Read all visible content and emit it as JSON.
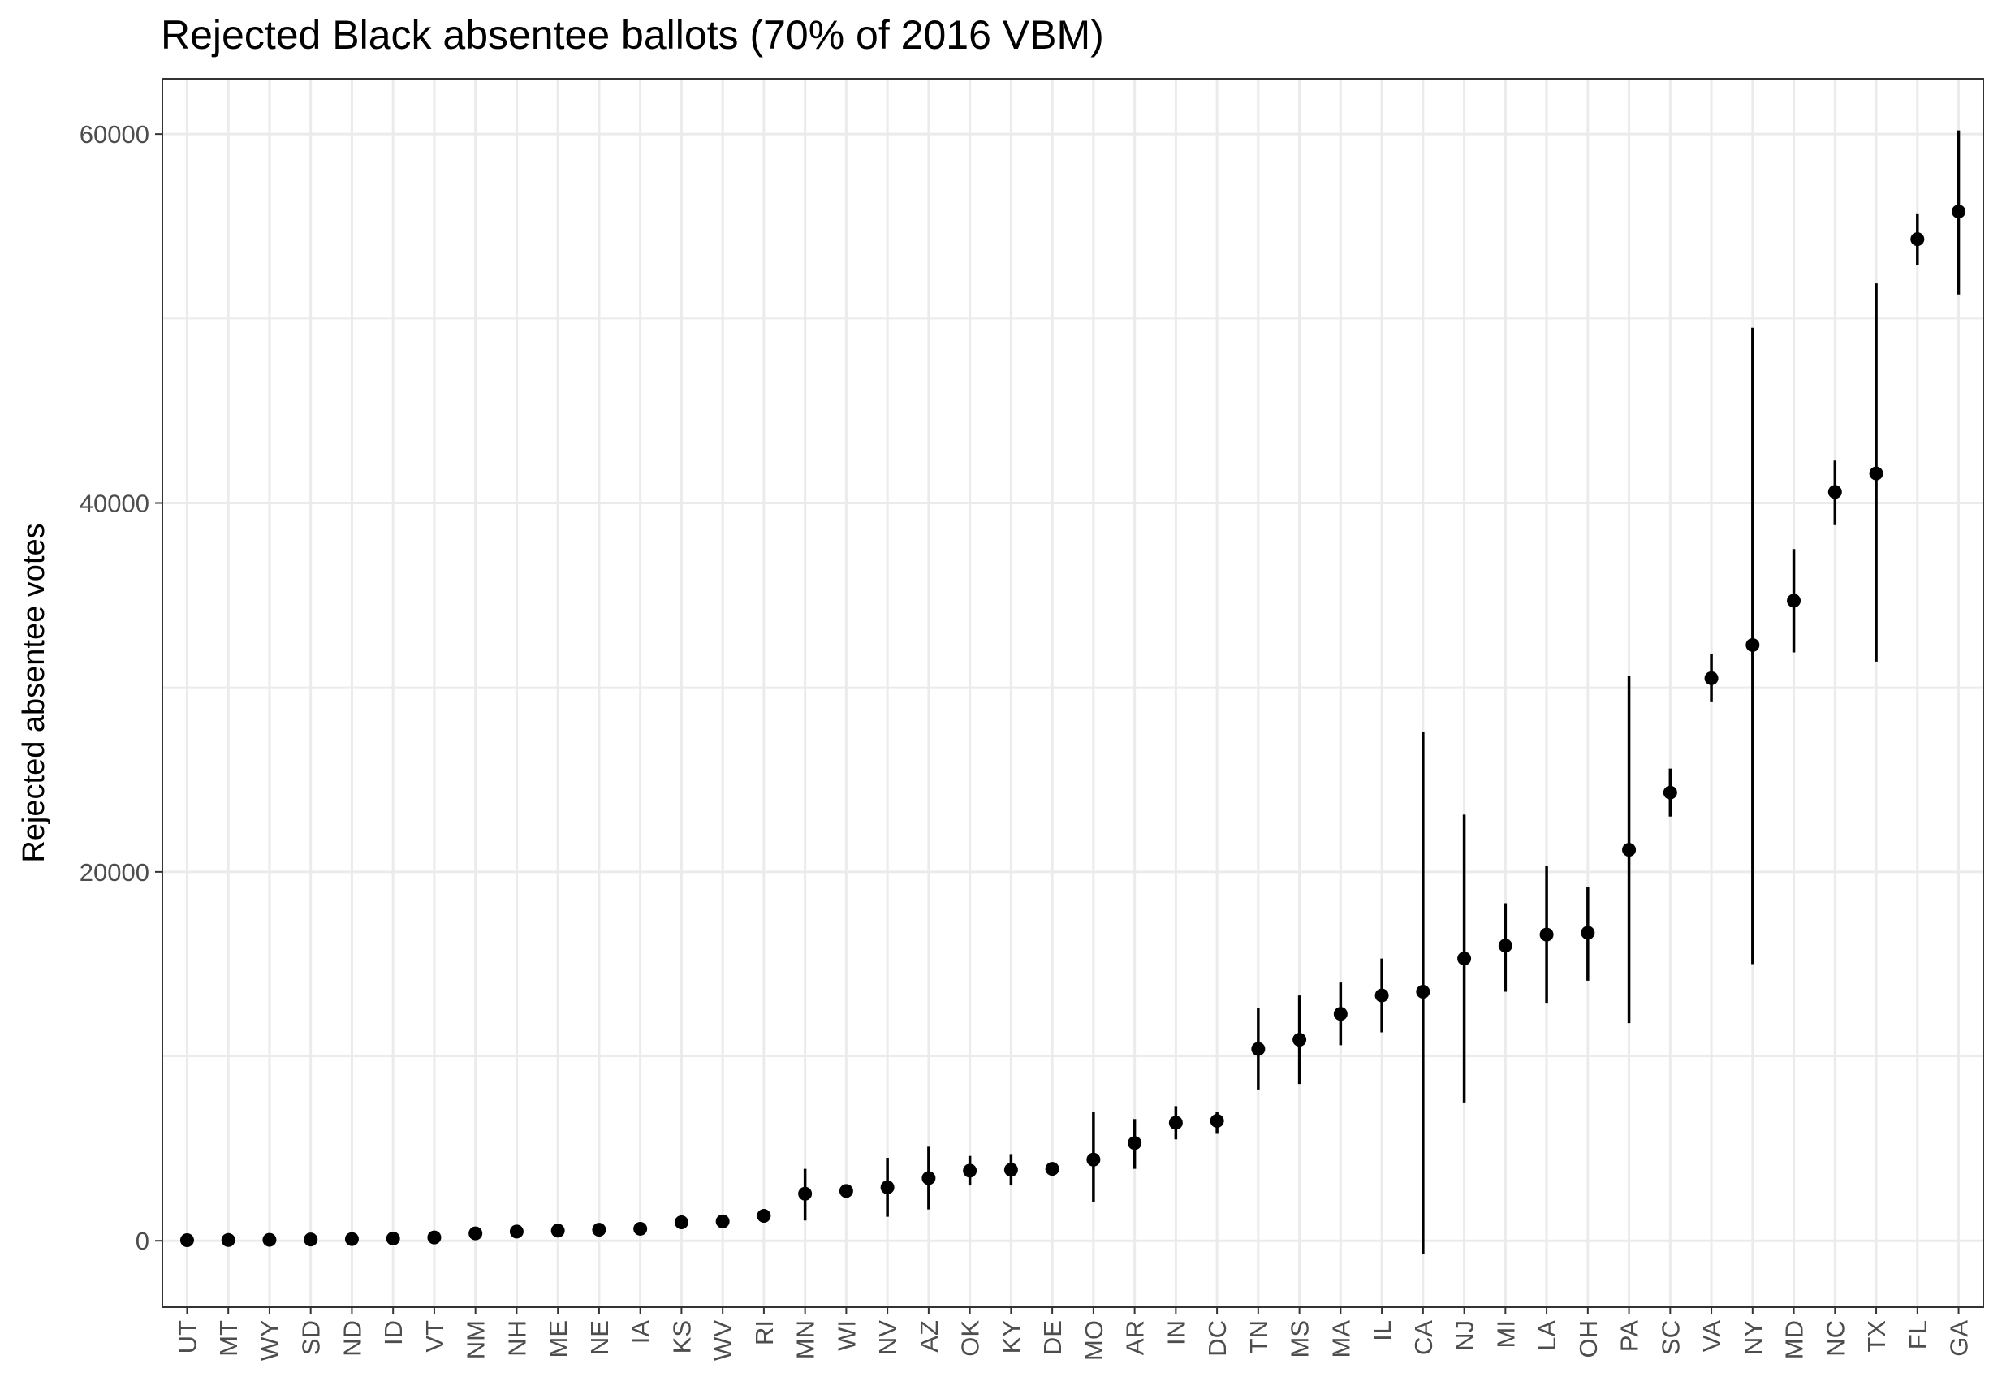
{
  "chart_data": {
    "type": "scatter",
    "title": "Rejected Black absentee ballots (70% of 2016 VBM)",
    "xlabel": "",
    "ylabel": "Rejected absentee votes",
    "ylim": [
      -3600,
      63000
    ],
    "yticks": [
      0,
      20000,
      40000,
      60000
    ],
    "yticklabels": [
      "0",
      "20000",
      "40000",
      "60000"
    ],
    "grid": true,
    "theme": "black-and-white",
    "marker_color": "#000000",
    "categories": [
      "UT",
      "MT",
      "WY",
      "SD",
      "ND",
      "ID",
      "VT",
      "NM",
      "NH",
      "ME",
      "NE",
      "IA",
      "KS",
      "WV",
      "RI",
      "MN",
      "WI",
      "NV",
      "AZ",
      "OK",
      "KY",
      "DE",
      "MO",
      "AR",
      "IN",
      "DC",
      "TN",
      "MS",
      "MA",
      "IL",
      "CA",
      "NJ",
      "MI",
      "LA",
      "OH",
      "PA",
      "SC",
      "VA",
      "NY",
      "MD",
      "NC",
      "TX",
      "FL",
      "GA"
    ],
    "series": [
      {
        "values": [
          30,
          40,
          50,
          70,
          90,
          120,
          180,
          400,
          500,
          550,
          600,
          650,
          1000,
          1050,
          1350,
          2550,
          2700,
          2900,
          3400,
          3800,
          3850,
          3900,
          4400,
          5300,
          6400,
          6500,
          10400,
          10900,
          12300,
          13300,
          13500,
          15300,
          16000,
          16600,
          16700,
          21200,
          24300,
          30500,
          32300,
          34700,
          40600,
          41600,
          54300,
          55800
        ],
        "lower": [
          30,
          40,
          50,
          70,
          90,
          120,
          180,
          400,
          500,
          550,
          600,
          650,
          700,
          1050,
          1350,
          1100,
          2700,
          1300,
          1700,
          3000,
          3000,
          3900,
          2100,
          3900,
          5500,
          5800,
          8200,
          8500,
          10600,
          11300,
          -700,
          7500,
          13500,
          12900,
          14100,
          11800,
          23000,
          29200,
          15000,
          31900,
          38800,
          31400,
          52900,
          51300
        ],
        "upper": [
          30,
          40,
          50,
          70,
          90,
          120,
          180,
          400,
          500,
          550,
          600,
          650,
          1400,
          1050,
          1350,
          3900,
          2700,
          4500,
          5100,
          4600,
          4700,
          3900,
          7000,
          6600,
          7300,
          7000,
          12600,
          13300,
          14000,
          15300,
          27600,
          23100,
          18300,
          20300,
          19200,
          30600,
          25600,
          31800,
          49500,
          37500,
          42300,
          51900,
          55700,
          60200
        ]
      }
    ]
  }
}
